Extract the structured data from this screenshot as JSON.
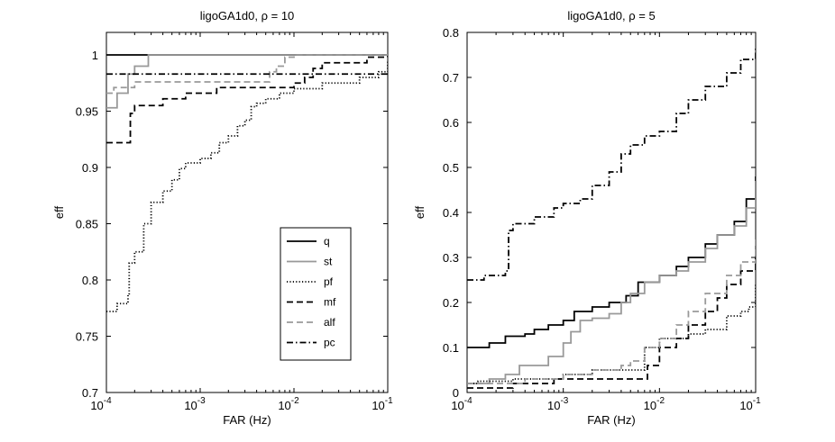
{
  "chart_data": [
    {
      "type": "line",
      "title": "ligoGA1d0, ρ = 10",
      "xlabel": "FAR (Hz)",
      "ylabel": "eff",
      "xscale": "log",
      "xlim": [
        0.0001,
        0.1
      ],
      "ylim": [
        0.7,
        1.02
      ],
      "xticks": [
        {
          "base": "10",
          "exp": "-4"
        },
        {
          "base": "10",
          "exp": "-3"
        },
        {
          "base": "10",
          "exp": "-2"
        },
        {
          "base": "10",
          "exp": "-1"
        }
      ],
      "yticks": [
        "0.7",
        "0.75",
        "0.8",
        "0.85",
        "0.9",
        "0.95",
        "1"
      ],
      "legend": {
        "placement": "lower-right",
        "entries": [
          "q",
          "st",
          "pf",
          "mf",
          "alf",
          "pc"
        ]
      },
      "series": [
        {
          "name": "q",
          "color": "#000000",
          "style": "solid",
          "points": [
            [
              0.0001,
              1.0
            ],
            [
              0.1,
              1.0
            ]
          ]
        },
        {
          "name": "st",
          "color": "#999999",
          "style": "solid",
          "points": [
            [
              0.0001,
              0.953
            ],
            [
              0.00013,
              0.966
            ],
            [
              0.00017,
              0.983
            ],
            [
              0.0002,
              0.99
            ],
            [
              0.00028,
              1.0
            ],
            [
              0.1,
              1.0
            ]
          ]
        },
        {
          "name": "pf",
          "color": "#000000",
          "style": "dotted",
          "points": [
            [
              0.0001,
              0.772
            ],
            [
              0.00013,
              0.779
            ],
            [
              0.00017,
              0.787
            ],
            [
              0.000175,
              0.815
            ],
            [
              0.0002,
              0.825
            ],
            [
              0.00025,
              0.85
            ],
            [
              0.0003,
              0.869
            ],
            [
              0.0004,
              0.879
            ],
            [
              0.0005,
              0.889
            ],
            [
              0.0006,
              0.899
            ],
            [
              0.0007,
              0.904
            ],
            [
              0.001,
              0.908
            ],
            [
              0.0013,
              0.913
            ],
            [
              0.0016,
              0.922
            ],
            [
              0.002,
              0.928
            ],
            [
              0.0025,
              0.937
            ],
            [
              0.003,
              0.942
            ],
            [
              0.0035,
              0.954
            ],
            [
              0.004,
              0.957
            ],
            [
              0.005,
              0.961
            ],
            [
              0.007,
              0.966
            ],
            [
              0.01,
              0.97
            ],
            [
              0.02,
              0.975
            ],
            [
              0.05,
              0.98
            ],
            [
              0.08,
              0.985
            ],
            [
              0.1,
              0.994
            ]
          ]
        },
        {
          "name": "mf",
          "color": "#000000",
          "style": "dashed",
          "points": [
            [
              0.0001,
              0.922
            ],
            [
              0.00018,
              0.927
            ],
            [
              0.00018,
              0.948
            ],
            [
              0.0002,
              0.955
            ],
            [
              0.0003,
              0.955
            ],
            [
              0.0004,
              0.961
            ],
            [
              0.0007,
              0.966
            ],
            [
              0.0012,
              0.966
            ],
            [
              0.0015,
              0.971
            ],
            [
              0.006,
              0.971
            ],
            [
              0.01,
              0.975
            ],
            [
              0.013,
              0.98
            ],
            [
              0.016,
              0.988
            ],
            [
              0.02,
              0.993
            ],
            [
              0.05,
              0.993
            ],
            [
              0.06,
              0.998
            ],
            [
              0.1,
              1.0
            ]
          ]
        },
        {
          "name": "alf",
          "color": "#999999",
          "style": "dashed",
          "points": [
            [
              0.0001,
              0.966
            ],
            [
              0.00012,
              0.971
            ],
            [
              0.00016,
              0.971
            ],
            [
              0.0002,
              0.976
            ],
            [
              0.0045,
              0.976
            ],
            [
              0.0055,
              0.985
            ],
            [
              0.0065,
              0.99
            ],
            [
              0.008,
              0.998
            ],
            [
              0.01,
              1.0
            ],
            [
              0.1,
              1.0
            ]
          ]
        },
        {
          "name": "pc",
          "color": "#000000",
          "style": "dashdot",
          "points": [
            [
              0.0001,
              0.983
            ],
            [
              0.1,
              0.983
            ]
          ]
        }
      ]
    },
    {
      "type": "line",
      "title": "ligoGA1d0, ρ = 5",
      "xlabel": "FAR (Hz)",
      "ylabel": "eff",
      "xscale": "log",
      "xlim": [
        0.0001,
        0.1
      ],
      "ylim": [
        0,
        0.8
      ],
      "xticks": [
        {
          "base": "10",
          "exp": "-4"
        },
        {
          "base": "10",
          "exp": "-3"
        },
        {
          "base": "10",
          "exp": "-2"
        },
        {
          "base": "10",
          "exp": "-1"
        }
      ],
      "yticks": [
        "0",
        "0.1",
        "0.2",
        "0.3",
        "0.4",
        "0.5",
        "0.6",
        "0.7",
        "0.8"
      ],
      "series": [
        {
          "name": "q",
          "color": "#000000",
          "style": "solid",
          "points": [
            [
              0.0001,
              0.1
            ],
            [
              0.00017,
              0.11
            ],
            [
              0.00025,
              0.125
            ],
            [
              0.0004,
              0.13
            ],
            [
              0.0005,
              0.14
            ],
            [
              0.0007,
              0.15
            ],
            [
              0.001,
              0.16
            ],
            [
              0.0013,
              0.18
            ],
            [
              0.002,
              0.19
            ],
            [
              0.003,
              0.2
            ],
            [
              0.0045,
              0.215
            ],
            [
              0.006,
              0.245
            ],
            [
              0.01,
              0.26
            ],
            [
              0.015,
              0.28
            ],
            [
              0.02,
              0.3
            ],
            [
              0.03,
              0.33
            ],
            [
              0.04,
              0.35
            ],
            [
              0.06,
              0.38
            ],
            [
              0.08,
              0.43
            ],
            [
              0.1,
              0.48
            ]
          ]
        },
        {
          "name": "st",
          "color": "#999999",
          "style": "solid",
          "points": [
            [
              0.0001,
              0.02
            ],
            [
              0.00017,
              0.03
            ],
            [
              0.00025,
              0.04
            ],
            [
              0.00035,
              0.06
            ],
            [
              0.0005,
              0.06
            ],
            [
              0.0007,
              0.08
            ],
            [
              0.001,
              0.11
            ],
            [
              0.0012,
              0.135
            ],
            [
              0.0015,
              0.16
            ],
            [
              0.002,
              0.165
            ],
            [
              0.003,
              0.175
            ],
            [
              0.004,
              0.2
            ],
            [
              0.005,
              0.22
            ],
            [
              0.007,
              0.245
            ],
            [
              0.01,
              0.26
            ],
            [
              0.015,
              0.27
            ],
            [
              0.02,
              0.29
            ],
            [
              0.03,
              0.32
            ],
            [
              0.04,
              0.35
            ],
            [
              0.06,
              0.37
            ],
            [
              0.08,
              0.41
            ],
            [
              0.1,
              0.47
            ]
          ]
        },
        {
          "name": "pf",
          "color": "#000000",
          "style": "dotted",
          "points": [
            [
              0.0001,
              0.02
            ],
            [
              0.00013,
              0.025
            ],
            [
              0.0003,
              0.03
            ],
            [
              0.001,
              0.04
            ],
            [
              0.002,
              0.05
            ],
            [
              0.0065,
              0.05
            ],
            [
              0.007,
              0.1
            ],
            [
              0.01,
              0.12
            ],
            [
              0.02,
              0.13
            ],
            [
              0.03,
              0.14
            ],
            [
              0.05,
              0.17
            ],
            [
              0.07,
              0.18
            ],
            [
              0.085,
              0.19
            ],
            [
              0.1,
              0.24
            ]
          ]
        },
        {
          "name": "mf",
          "color": "#000000",
          "style": "dashed",
          "points": [
            [
              0.0001,
              0.01
            ],
            [
              0.0003,
              0.02
            ],
            [
              0.0006,
              0.02
            ],
            [
              0.0008,
              0.03
            ],
            [
              0.0065,
              0.03
            ],
            [
              0.0075,
              0.06
            ],
            [
              0.01,
              0.1
            ],
            [
              0.015,
              0.12
            ],
            [
              0.02,
              0.15
            ],
            [
              0.03,
              0.18
            ],
            [
              0.04,
              0.21
            ],
            [
              0.05,
              0.24
            ],
            [
              0.07,
              0.27
            ],
            [
              0.1,
              0.3
            ]
          ]
        },
        {
          "name": "alf",
          "color": "#999999",
          "style": "dashed",
          "points": [
            [
              0.0001,
              0.02
            ],
            [
              0.0004,
              0.03
            ],
            [
              0.001,
              0.04
            ],
            [
              0.002,
              0.05
            ],
            [
              0.004,
              0.06
            ],
            [
              0.005,
              0.07
            ],
            [
              0.007,
              0.1
            ],
            [
              0.01,
              0.12
            ],
            [
              0.015,
              0.15
            ],
            [
              0.02,
              0.18
            ],
            [
              0.03,
              0.22
            ],
            [
              0.05,
              0.26
            ],
            [
              0.07,
              0.29
            ],
            [
              0.1,
              0.34
            ]
          ]
        },
        {
          "name": "pc",
          "color": "#000000",
          "style": "dashdot",
          "points": [
            [
              0.0001,
              0.25
            ],
            [
              0.00015,
              0.26
            ],
            [
              0.00025,
              0.27
            ],
            [
              0.00027,
              0.36
            ],
            [
              0.0003,
              0.375
            ],
            [
              0.0005,
              0.39
            ],
            [
              0.0008,
              0.41
            ],
            [
              0.001,
              0.42
            ],
            [
              0.0015,
              0.43
            ],
            [
              0.002,
              0.46
            ],
            [
              0.003,
              0.49
            ],
            [
              0.004,
              0.53
            ],
            [
              0.005,
              0.55
            ],
            [
              0.007,
              0.57
            ],
            [
              0.01,
              0.58
            ],
            [
              0.015,
              0.62
            ],
            [
              0.02,
              0.65
            ],
            [
              0.03,
              0.68
            ],
            [
              0.05,
              0.71
            ],
            [
              0.07,
              0.74
            ],
            [
              0.1,
              0.77
            ]
          ]
        }
      ]
    }
  ]
}
